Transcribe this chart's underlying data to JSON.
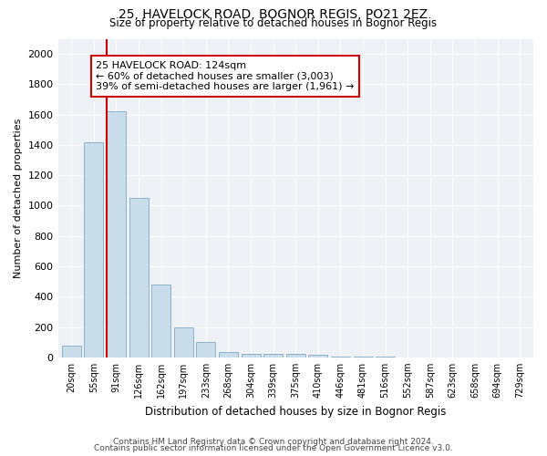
{
  "title1": "25, HAVELOCK ROAD, BOGNOR REGIS, PO21 2EZ",
  "title2": "Size of property relative to detached houses in Bognor Regis",
  "xlabel": "Distribution of detached houses by size in Bognor Regis",
  "ylabel": "Number of detached properties",
  "categories": [
    "20sqm",
    "55sqm",
    "91sqm",
    "126sqm",
    "162sqm",
    "197sqm",
    "233sqm",
    "268sqm",
    "304sqm",
    "339sqm",
    "375sqm",
    "410sqm",
    "446sqm",
    "481sqm",
    "516sqm",
    "552sqm",
    "587sqm",
    "623sqm",
    "658sqm",
    "694sqm",
    "729sqm"
  ],
  "values": [
    75,
    1420,
    1620,
    1050,
    480,
    200,
    100,
    35,
    25,
    20,
    20,
    15,
    5,
    3,
    2,
    1,
    1,
    0,
    0,
    0,
    0
  ],
  "bar_color": "#c9dcea",
  "bar_edge_color": "#8ab4cc",
  "highlight_index": 2,
  "highlight_edge_color": "#cc0000",
  "annotation_text": "25 HAVELOCK ROAD: 124sqm\n← 60% of detached houses are smaller (3,003)\n39% of semi-detached houses are larger (1,961) →",
  "annotation_box_color": "#ffffff",
  "annotation_edge_color": "#cc0000",
  "ylim": [
    0,
    2100
  ],
  "yticks": [
    0,
    200,
    400,
    600,
    800,
    1000,
    1200,
    1400,
    1600,
    1800,
    2000
  ],
  "footer1": "Contains HM Land Registry data © Crown copyright and database right 2024.",
  "footer2": "Contains public sector information licensed under the Open Government Licence v3.0.",
  "bg_color": "#ffffff",
  "plot_bg_color": "#eef2f7",
  "grid_color": "#ffffff"
}
